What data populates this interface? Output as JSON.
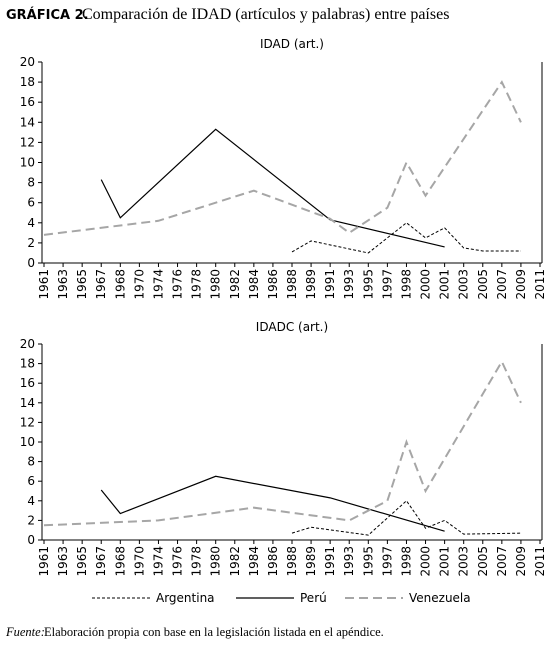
{
  "header": {
    "label": "GRÁFICA 2.",
    "title": "Comparación de IDAD (artículos y palabras) entre países"
  },
  "chart_data": [
    {
      "type": "line",
      "title": "IDAD (art.)",
      "categories": [
        1961,
        1963,
        1965,
        1967,
        1968,
        1970,
        1974,
        1976,
        1978,
        1980,
        1982,
        1984,
        1986,
        1988,
        1989,
        1991,
        1993,
        1995,
        1997,
        1998,
        2000,
        2001,
        2003,
        2005,
        2007,
        2009,
        2011
      ],
      "ylim": [
        0,
        20
      ],
      "yticks": [
        0,
        2,
        4,
        6,
        8,
        10,
        12,
        14,
        16,
        18,
        20
      ],
      "series": [
        {
          "name": "Argentina",
          "color": "#000000",
          "line_style": "dotted",
          "x": [
            1988,
            1989,
            1995,
            1998,
            2000,
            2001,
            2003,
            2005,
            2009
          ],
          "values": [
            1.1,
            2.2,
            1.0,
            4.0,
            2.5,
            3.5,
            1.5,
            1.2,
            1.2
          ]
        },
        {
          "name": "Perú",
          "color": "#000000",
          "line_style": "solid",
          "x": [
            1967,
            1968,
            1980,
            1991,
            2001
          ],
          "values": [
            8.3,
            4.5,
            13.3,
            4.3,
            1.6
          ]
        },
        {
          "name": "Venezuela",
          "color": "#a6a6a6",
          "line_style": "dashed",
          "x": [
            1961,
            1974,
            1984,
            1991,
            1993,
            1997,
            1998,
            2000,
            2007,
            2009
          ],
          "values": [
            2.8,
            4.2,
            7.2,
            4.4,
            3.0,
            5.5,
            10.0,
            6.7,
            18.0,
            14.0
          ]
        }
      ]
    },
    {
      "type": "line",
      "title": "IDADC (art.)",
      "categories": [
        1961,
        1963,
        1965,
        1967,
        1968,
        1970,
        1974,
        1976,
        1978,
        1980,
        1982,
        1984,
        1986,
        1988,
        1989,
        1991,
        1993,
        1995,
        1997,
        1998,
        2000,
        2001,
        2003,
        2005,
        2007,
        2009,
        2011
      ],
      "ylim": [
        0,
        20
      ],
      "yticks": [
        0,
        2,
        4,
        6,
        8,
        10,
        12,
        14,
        16,
        18,
        20
      ],
      "series": [
        {
          "name": "Argentina",
          "color": "#000000",
          "line_style": "dotted",
          "x": [
            1988,
            1989,
            1995,
            1998,
            2000,
            2001,
            2003,
            2009
          ],
          "values": [
            0.7,
            1.3,
            0.5,
            4.0,
            1.2,
            2.0,
            0.6,
            0.7
          ]
        },
        {
          "name": "Perú",
          "color": "#000000",
          "line_style": "solid",
          "x": [
            1967,
            1968,
            1980,
            1991,
            2001
          ],
          "values": [
            5.1,
            2.7,
            6.5,
            4.3,
            0.9
          ]
        },
        {
          "name": "Venezuela",
          "color": "#a6a6a6",
          "line_style": "dashed",
          "x": [
            1961,
            1974,
            1984,
            1993,
            1997,
            1998,
            2000,
            2007,
            2009
          ],
          "values": [
            1.5,
            2.0,
            3.3,
            2.0,
            4.0,
            10.0,
            5.0,
            18.2,
            14.0
          ]
        }
      ]
    }
  ],
  "footer": {
    "label": "Fuente:",
    "text": "Elaboración propia con base en la legislación listada en el apéndice."
  }
}
